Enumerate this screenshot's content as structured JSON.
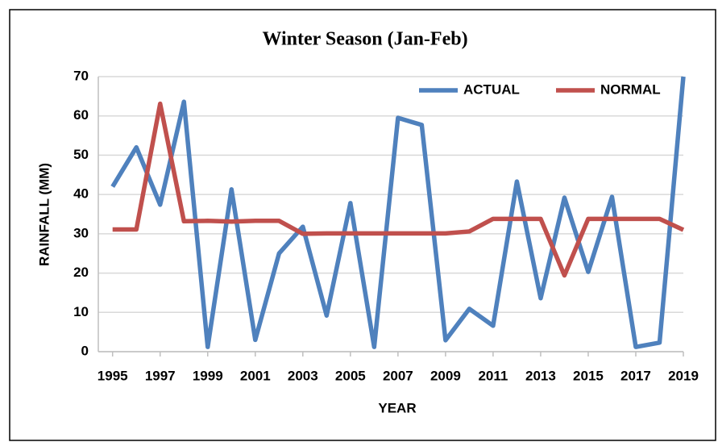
{
  "chart_data": {
    "type": "line",
    "title": "Winter Season (Jan-Feb)",
    "x_label": "YEAR",
    "y_label": "RAINFALL (MM)",
    "x": [
      1995,
      1996,
      1997,
      1998,
      1999,
      2000,
      2001,
      2002,
      2003,
      2004,
      2005,
      2006,
      2007,
      2008,
      2009,
      2010,
      2011,
      2012,
      2013,
      2014,
      2015,
      2016,
      2017,
      2018,
      2019
    ],
    "series": [
      {
        "name": "ACTUAL",
        "color": "#4f81bd",
        "values": [
          42,
          52,
          37.4,
          63.6,
          1.2,
          41.3,
          3,
          25,
          31.8,
          9.2,
          37.8,
          1.2,
          59.5,
          57.7,
          2.9,
          10.9,
          6.6,
          43.3,
          13.6,
          39.2,
          20.3,
          39.4,
          1.2,
          2.3,
          70
        ]
      },
      {
        "name": "NORMAL",
        "color": "#c0504d",
        "values": [
          31.1,
          31.1,
          63.1,
          33.2,
          33.3,
          33.1,
          33.3,
          33.3,
          30,
          30.1,
          30.1,
          30.1,
          30.1,
          30.1,
          30.1,
          30.6,
          33.8,
          33.8,
          33.8,
          19.4,
          33.8,
          33.8,
          33.8,
          33.8,
          31
        ]
      }
    ],
    "xlim": [
      1994.4,
      2019
    ],
    "xticks": [
      1995,
      1997,
      1999,
      2001,
      2003,
      2005,
      2007,
      2009,
      2011,
      2013,
      2015,
      2017,
      2019
    ],
    "ylim": [
      0,
      70
    ],
    "yticks": [
      0,
      10,
      20,
      30,
      40,
      50,
      60,
      70
    ],
    "grid": true,
    "legend": "top-right"
  }
}
